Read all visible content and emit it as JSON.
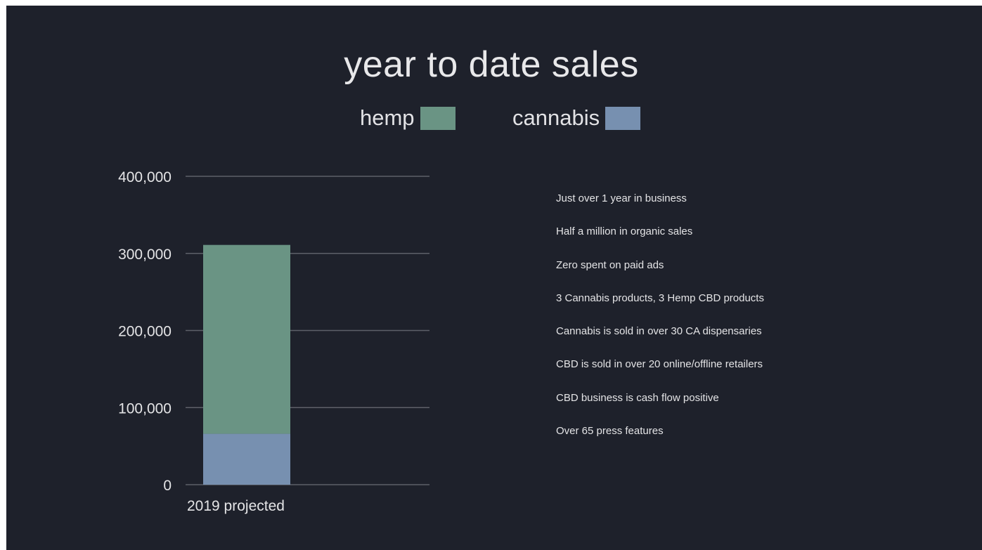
{
  "chart_data": {
    "type": "bar",
    "stacked": true,
    "title": "year to date sales",
    "categories": [
      "2019 projected"
    ],
    "series": [
      {
        "name": "cannabis",
        "values": [
          66000
        ],
        "color": "#7790b0"
      },
      {
        "name": "hemp",
        "values": [
          245000
        ],
        "color": "#6a9484"
      }
    ],
    "ylim": [
      0,
      400000
    ],
    "y_ticks": [
      {
        "value": 0,
        "label": "0"
      },
      {
        "value": 100000,
        "label": "100,000"
      },
      {
        "value": 200000,
        "label": "200,000"
      },
      {
        "value": 300000,
        "label": "300,000"
      },
      {
        "value": 400000,
        "label": "400,000"
      }
    ],
    "legend_placement": "top-center",
    "legend_order": [
      "hemp",
      "cannabis"
    ],
    "grid": true
  },
  "bullets": [
    "Just over 1 year in business",
    "Half a million in organic sales",
    "Zero spent on paid ads",
    "3 Cannabis products, 3 Hemp CBD products",
    "Cannabis is sold in over 30 CA dispensaries",
    "CBD is sold in over 20 online/offline retailers",
    "CBD business is cash flow positive",
    "Over 65 press features"
  ],
  "colors": {
    "background": "#1e212b",
    "text": "#e4e4e6",
    "gridline": "#5d6069"
  }
}
